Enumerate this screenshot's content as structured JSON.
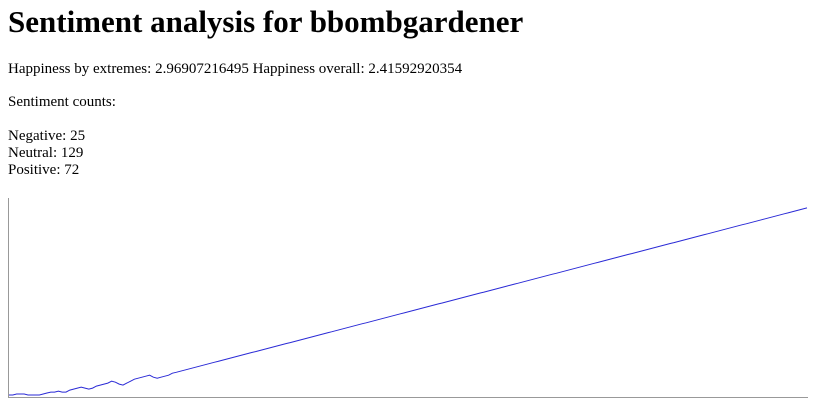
{
  "page": {
    "title": "Sentiment analysis for bbombgardener",
    "happiness_label_extremes": "Happiness by extremes:",
    "happiness_value_extremes": "2.96907216495",
    "happiness_label_overall": "Happiness overall:",
    "happiness_value_overall": "2.41592920354",
    "counts_label": "Sentiment counts:",
    "negative_label": "Negative:",
    "negative_value": "25",
    "neutral_label": "Neutral:",
    "neutral_value": "129",
    "positive_label": "Positive:",
    "positive_value": "72"
  },
  "colors": {
    "line": "#2a2ad6",
    "axis": "#999999"
  },
  "chart_data": {
    "type": "line",
    "title": "",
    "xlabel": "",
    "ylabel": "",
    "grid": false,
    "ylim": [
      0,
      200
    ],
    "series": [
      {
        "values": [
          2,
          2,
          3,
          3,
          3,
          2,
          2,
          2,
          2,
          3,
          4,
          5,
          5,
          6,
          5,
          5,
          7,
          8,
          9,
          10,
          9,
          8,
          9,
          11,
          12,
          13,
          14,
          16,
          15,
          13,
          12,
          14,
          16,
          18,
          19,
          20,
          21,
          22,
          20,
          19,
          20,
          21,
          22,
          24,
          25,
          26,
          27,
          28,
          29,
          30,
          31,
          32,
          33,
          34,
          35,
          36,
          37,
          38,
          39,
          40,
          41,
          42,
          43,
          44,
          45,
          46,
          47,
          48,
          49,
          50,
          51,
          52,
          53,
          54,
          55,
          56,
          57,
          58,
          59,
          60,
          61,
          62,
          63,
          64,
          65,
          66,
          67,
          68,
          69,
          70,
          71,
          72,
          73,
          74,
          75,
          76,
          77,
          78,
          79,
          80,
          81,
          82,
          83,
          84,
          85,
          86,
          87,
          88,
          89,
          90,
          91,
          92,
          93,
          94,
          95,
          96,
          97,
          98,
          99,
          100,
          101,
          102,
          103,
          104,
          105,
          106,
          107,
          108,
          109,
          110,
          111,
          112,
          113,
          114,
          115,
          116,
          117,
          118,
          119,
          120,
          121,
          122,
          123,
          124,
          125,
          126,
          127,
          128,
          129,
          130,
          131,
          132,
          133,
          134,
          135,
          136,
          137,
          138,
          139,
          140,
          141,
          142,
          143,
          144,
          145,
          146,
          147,
          148,
          149,
          150,
          151,
          152,
          153,
          154,
          155,
          156,
          157,
          158,
          159,
          160,
          161,
          162,
          163,
          164,
          165,
          166,
          167,
          168,
          169,
          170,
          171,
          172,
          173,
          174,
          175,
          176,
          177,
          178,
          179,
          180,
          181,
          182,
          183,
          184,
          185,
          186,
          187,
          188,
          189,
          190,
          191
        ]
      }
    ]
  }
}
